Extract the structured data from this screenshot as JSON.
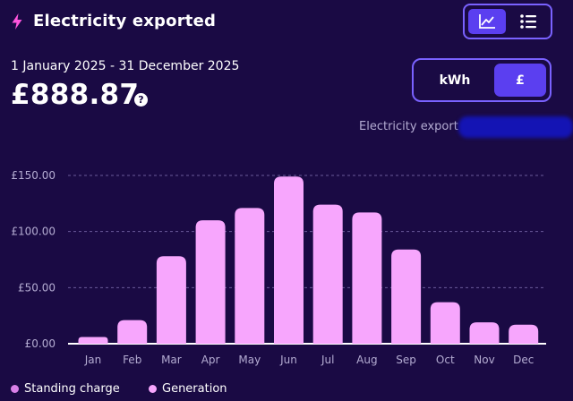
{
  "header": {
    "title": "Electricity exported",
    "icon": "lightning-bolt-icon"
  },
  "view_toggle": {
    "chart_icon": "line-chart-icon",
    "list_icon": "list-icon",
    "selected": "chart"
  },
  "summary": {
    "date_range": "1 January 2025 - 31 December 2025",
    "total": "£888.87",
    "help_glyph": "?"
  },
  "unit_toggle": {
    "kwh_label": "kWh",
    "gbp_label": "£",
    "selected": "gbp"
  },
  "series_label": "Electricity export",
  "colors": {
    "background": "#1a0a44",
    "accent": "#5b3ff0",
    "border": "#7a62ff",
    "bar": "#f7a6fd",
    "standing_charge": "#d980e8",
    "generation": "#f7a6fd"
  },
  "chart_data": {
    "type": "bar",
    "categories": [
      "Jan",
      "Feb",
      "Mar",
      "Apr",
      "May",
      "Jun",
      "Jul",
      "Aug",
      "Sep",
      "Oct",
      "Nov",
      "Dec"
    ],
    "series": [
      {
        "name": "Generation",
        "values": [
          6,
          21,
          78,
          110,
          121,
          149,
          124,
          117,
          84,
          37,
          19,
          17
        ]
      }
    ],
    "yticks": [
      "£0.00",
      "£50.00",
      "£100.00",
      "£150.00"
    ],
    "ytick_values": [
      0,
      50,
      100,
      150
    ],
    "ylim": [
      0,
      155
    ],
    "grid": true,
    "legend_position": "bottom-left"
  },
  "legend": {
    "items": [
      {
        "label": "Standing charge",
        "color": "#d980e8"
      },
      {
        "label": "Generation",
        "color": "#f7a6fd"
      }
    ]
  }
}
